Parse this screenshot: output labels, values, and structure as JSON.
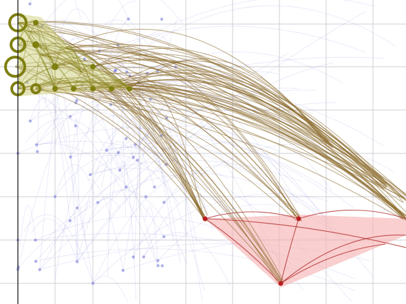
{
  "scene": {
    "description_visible_text": [],
    "colors": {
      "background": "#ffffff",
      "grid": "#cfcfd6",
      "axis": "#2b2b2b",
      "faint_edges": "#8b8fe0",
      "faint_nodes": "#6f73d6",
      "olive_nodes": "#7f7f10",
      "olive_fill": "#c7c76a",
      "brown_edges": "#8a6a2a",
      "red_nodes": "#b81f1f",
      "red_edges": "#b02b2b",
      "pink_region": "#f7b5b5"
    },
    "legend": {
      "show": false
    },
    "icons": []
  }
}
